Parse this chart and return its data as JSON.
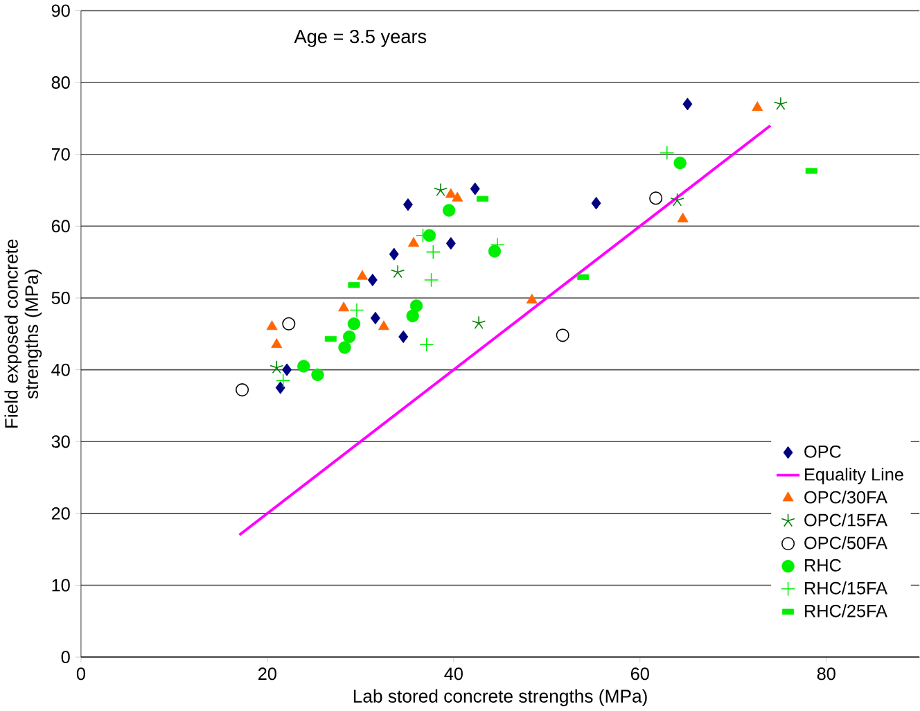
{
  "chart_data": {
    "type": "scatter",
    "xlabel": "Lab stored concrete strengths (MPa)",
    "ylabel": "Field exposed concrete strengths (MPa)",
    "annotations": [
      "Age = 3.5 years"
    ],
    "xlim": [
      0,
      90
    ],
    "ylim": [
      0,
      90
    ],
    "xticks": [
      0,
      20,
      40,
      60,
      80
    ],
    "yticks": [
      0,
      10,
      20,
      30,
      40,
      50,
      60,
      70,
      80,
      90
    ],
    "grid": "y",
    "legend": "right",
    "series": [
      {
        "name": "OPC",
        "color": "#000080",
        "marker": "diamond",
        "x": [
          65.1,
          55.3,
          42.3,
          35.1,
          39.7,
          33.6,
          31.3,
          31.6,
          34.6,
          22.1,
          21.4
        ],
        "values": [
          77,
          63.2,
          65.2,
          63,
          57.6,
          56.1,
          52.5,
          47.2,
          44.6,
          40,
          37.5
        ]
      },
      {
        "name": "Equality Line",
        "type": "line",
        "color": "#ff00ff",
        "marker": "none",
        "x": [
          17,
          74
        ],
        "values": [
          17,
          74
        ]
      },
      {
        "name": "OPC/30FA",
        "color": "#ff6600",
        "marker": "triangle",
        "x": [
          72.6,
          64.6,
          39.7,
          40.4,
          35.7,
          48.4,
          30.2,
          28.2,
          32.5,
          20.5,
          21.0
        ],
        "values": [
          76.5,
          61,
          64.4,
          63.9,
          57.6,
          49.7,
          53,
          48.6,
          46,
          46,
          43.5
        ]
      },
      {
        "name": "OPC/15FA",
        "color": "#008000",
        "x": [
          75.1,
          64.0,
          38.6,
          34.0,
          42.7,
          21.0
        ],
        "values": [
          77,
          63.6,
          65,
          53.6,
          46.5,
          40.3
        ]
      },
      {
        "name": "OPC/50FA",
        "color": "#000000",
        "marker": "circle",
        "x": [
          61.7,
          51.7,
          22.3,
          17.3
        ],
        "values": [
          63.9,
          44.8,
          46.4,
          37.2
        ]
      },
      {
        "name": "RHC",
        "color": "#00ee00",
        "marker": "circle",
        "x": [
          64.3,
          39.5,
          37.4,
          44.4,
          36.0,
          35.6,
          29.3,
          28.8,
          28.3,
          23.9,
          25.4
        ],
        "values": [
          68.8,
          62.2,
          58.7,
          56.5,
          48.9,
          47.5,
          46.4,
          44.6,
          43.1,
          40.5,
          39.3
        ]
      },
      {
        "name": "RHC/15FA",
        "color": "#00ee00",
        "marker": "cross",
        "x": [
          62.9,
          36.7,
          37.8,
          37.6,
          44.7,
          37.1,
          29.6,
          21.7
        ],
        "values": [
          70.2,
          58.7,
          56.4,
          52.5,
          57.4,
          43.5,
          48.3,
          38.5
        ]
      },
      {
        "name": "RHC/25FA",
        "color": "#00ee00",
        "marker": "square",
        "x": [
          78.4,
          43.1,
          53.9,
          29.3,
          26.8
        ],
        "values": [
          67.7,
          63.8,
          52.9,
          51.8,
          44.3
        ]
      }
    ]
  }
}
